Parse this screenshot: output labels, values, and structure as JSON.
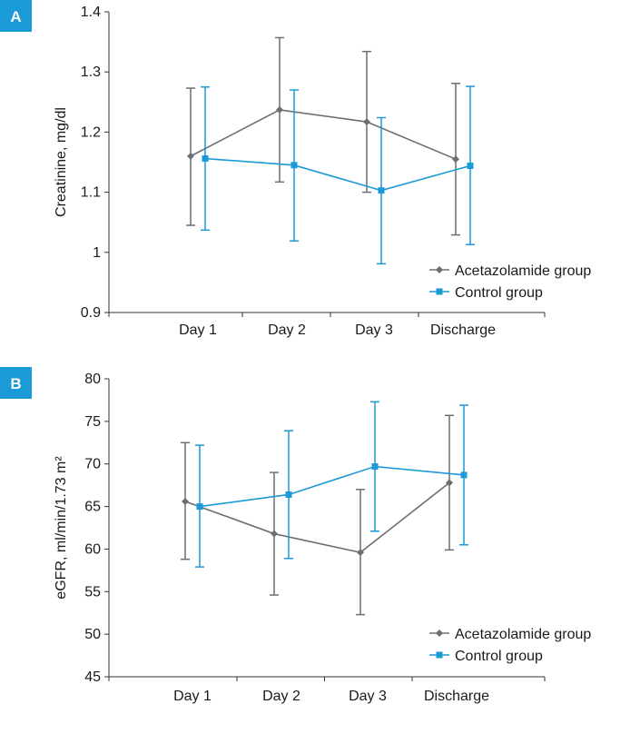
{
  "colors": {
    "acetazolamide": "#6d6e71",
    "control": "#1a9ad6",
    "panel_badge": "#1a9ad6"
  },
  "chart_data": [
    {
      "type": "line",
      "panel_label": "A",
      "title": "",
      "xlabel": "",
      "ylabel": "Creatinine, mg/dl",
      "categories": [
        "Day 1",
        "Day 2",
        "Day 3",
        "Discharge"
      ],
      "ylim": [
        0.9,
        1.4
      ],
      "yticks": [
        0.9,
        1,
        1.1,
        1.2,
        1.3,
        1.4
      ],
      "ytick_labels": [
        "0.9",
        "1",
        "1.1",
        "1.2",
        "1.3",
        "1.4"
      ],
      "grid": false,
      "legend_position": "bottom-right",
      "series": [
        {
          "name": "Acetazolamide group",
          "marker": "diamond",
          "values": [
            1.16,
            1.237,
            1.217,
            1.155
          ],
          "err_low": [
            1.045,
            1.117,
            1.1,
            1.029
          ],
          "err_high": [
            1.273,
            1.357,
            1.334,
            1.281
          ]
        },
        {
          "name": "Control group",
          "marker": "square",
          "values": [
            1.156,
            1.145,
            1.103,
            1.144
          ],
          "err_low": [
            1.037,
            1.019,
            0.981,
            1.013
          ],
          "err_high": [
            1.275,
            1.27,
            1.224,
            1.276
          ]
        }
      ]
    },
    {
      "type": "line",
      "panel_label": "B",
      "title": "",
      "xlabel": "",
      "ylabel": "eGFR, ml/min/1.73 m²",
      "categories": [
        "Day 1",
        "Day 2",
        "Day 3",
        "Discharge"
      ],
      "ylim": [
        45,
        80
      ],
      "yticks": [
        45,
        50,
        55,
        60,
        65,
        70,
        75,
        80
      ],
      "ytick_labels": [
        "45",
        "50",
        "55",
        "60",
        "65",
        "70",
        "75",
        "80"
      ],
      "grid": false,
      "legend_position": "bottom-right",
      "series": [
        {
          "name": "Acetazolamide group",
          "marker": "diamond",
          "values": [
            65.6,
            61.8,
            59.6,
            67.8
          ],
          "err_low": [
            58.8,
            54.6,
            52.3,
            59.9
          ],
          "err_high": [
            72.5,
            69.0,
            67.0,
            75.7
          ]
        },
        {
          "name": "Control group",
          "marker": "square",
          "values": [
            65.0,
            66.4,
            69.7,
            68.7
          ],
          "err_low": [
            57.9,
            58.9,
            62.1,
            60.5
          ],
          "err_high": [
            72.2,
            73.9,
            77.3,
            76.9
          ]
        }
      ]
    }
  ]
}
